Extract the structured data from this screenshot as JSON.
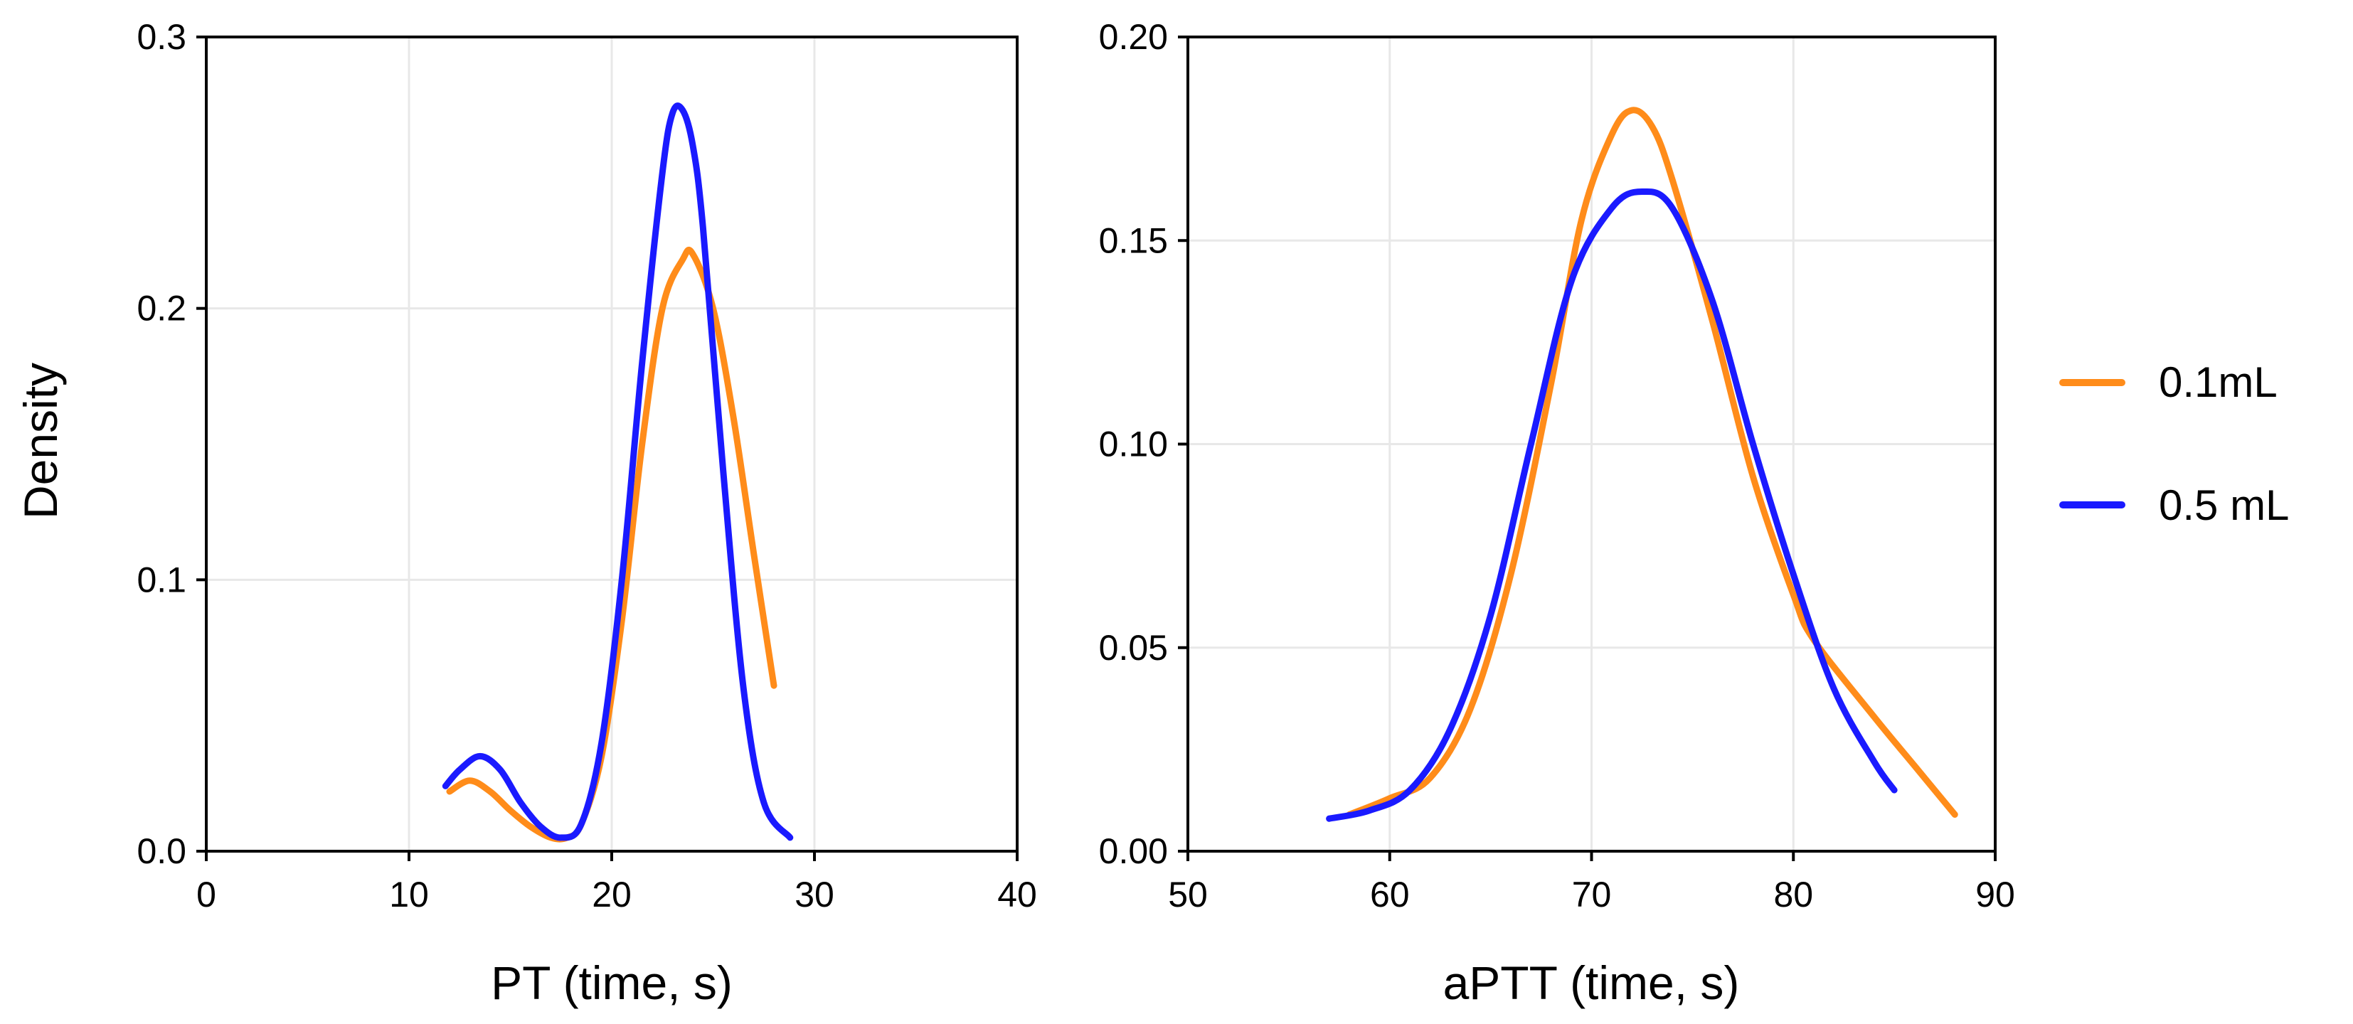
{
  "chart_data": [
    {
      "type": "line",
      "xlabel": "PT (time, s)",
      "ylabel": "Density",
      "xlim": [
        0,
        40
      ],
      "ylim": [
        0,
        0.3
      ],
      "xticks": [
        0,
        10,
        20,
        30,
        40
      ],
      "xtick_labels": [
        "0",
        "10",
        "20",
        "30",
        "40"
      ],
      "yticks": [
        0,
        0.1,
        0.2,
        0.3
      ],
      "ytick_labels": [
        "0.0",
        "0.1",
        "0.2",
        "0.3"
      ],
      "grid": true,
      "series": [
        {
          "name": "0.1mL",
          "color": "#ff8c1a",
          "x": [
            12,
            13,
            14,
            15,
            16,
            17,
            17.8,
            18.5,
            19.5,
            20.5,
            21.5,
            22.5,
            23.5,
            24,
            25,
            26,
            27,
            28
          ],
          "y": [
            0.022,
            0.026,
            0.022,
            0.015,
            0.009,
            0.005,
            0.005,
            0.01,
            0.035,
            0.085,
            0.15,
            0.2,
            0.218,
            0.22,
            0.2,
            0.16,
            0.11,
            0.061
          ]
        },
        {
          "name": "0.5 mL",
          "color": "#1a1aff",
          "x": [
            11.8,
            12.5,
            13.5,
            14.5,
            15.5,
            16.5,
            17.5,
            18.5,
            19.5,
            20.5,
            21.5,
            22.5,
            23,
            23.5,
            24,
            24.5,
            25.5,
            26.5,
            27.5,
            28.8
          ],
          "y": [
            0.024,
            0.03,
            0.035,
            0.03,
            0.018,
            0.009,
            0.005,
            0.01,
            0.04,
            0.1,
            0.18,
            0.25,
            0.272,
            0.273,
            0.26,
            0.23,
            0.14,
            0.06,
            0.018,
            0.005
          ]
        }
      ]
    },
    {
      "type": "line",
      "xlabel": "aPTT (time, s)",
      "ylabel": "",
      "xlim": [
        50,
        90
      ],
      "ylim": [
        0,
        0.2
      ],
      "xticks": [
        50,
        60,
        70,
        80,
        90
      ],
      "xtick_labels": [
        "50",
        "60",
        "70",
        "80",
        "90"
      ],
      "yticks": [
        0,
        0.05,
        0.1,
        0.15,
        0.2
      ],
      "ytick_labels": [
        "0.00",
        "0.05",
        "0.10",
        "0.15",
        "0.20"
      ],
      "grid": true,
      "series": [
        {
          "name": "0.1mL",
          "color": "#ff8c1a",
          "x": [
            58,
            60,
            62,
            64,
            66,
            68,
            69.5,
            71,
            72,
            73,
            74,
            76,
            78,
            80,
            81,
            84,
            86,
            88
          ],
          "y": [
            0.009,
            0.013,
            0.018,
            0.035,
            0.068,
            0.115,
            0.155,
            0.176,
            0.182,
            0.178,
            0.165,
            0.13,
            0.092,
            0.063,
            0.052,
            0.033,
            0.021,
            0.009
          ]
        },
        {
          "name": "0.5 mL",
          "color": "#1a1aff",
          "x": [
            57,
            59,
            61,
            63,
            65,
            67,
            69,
            71,
            72.5,
            74,
            76,
            78,
            80,
            82,
            84,
            85
          ],
          "y": [
            0.008,
            0.01,
            0.015,
            0.03,
            0.058,
            0.1,
            0.14,
            0.158,
            0.162,
            0.158,
            0.135,
            0.1,
            0.068,
            0.04,
            0.022,
            0.015
          ]
        }
      ]
    }
  ],
  "legend": {
    "position": "right",
    "items": [
      {
        "label": "0.1mL",
        "color": "#ff8c1a"
      },
      {
        "label": "0.5 mL",
        "color": "#1a1aff"
      }
    ]
  }
}
